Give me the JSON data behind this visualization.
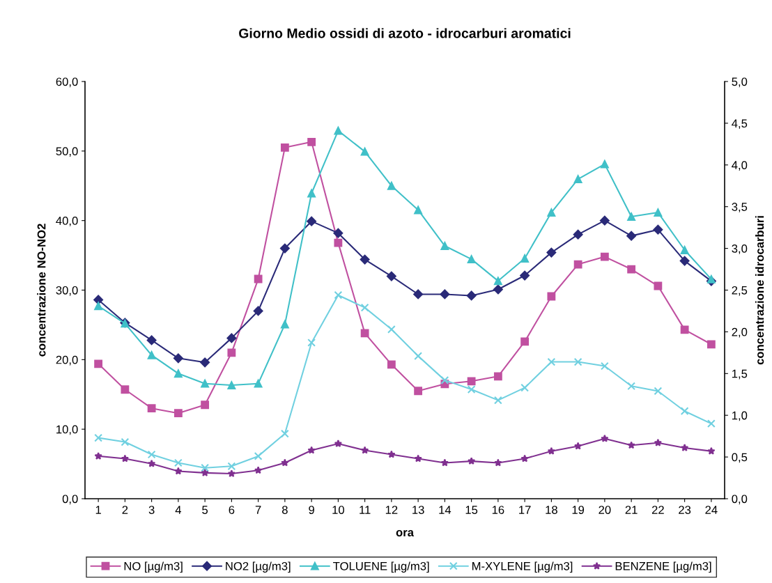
{
  "chart_data": {
    "type": "line",
    "title": "Giorno Medio ossidi di azoto - idrocarburi aromatici",
    "xlabel": "ora",
    "ylabel": "concentrazione NO-NO2",
    "y2label": "concentrazione idrocarburi",
    "categories": [
      "1",
      "2",
      "3",
      "4",
      "5",
      "6",
      "7",
      "8",
      "9",
      "10",
      "11",
      "12",
      "13",
      "14",
      "15",
      "16",
      "17",
      "18",
      "19",
      "20",
      "21",
      "22",
      "23",
      "24"
    ],
    "series": [
      {
        "name": "NO [µg/m3]",
        "color": "#c050a0",
        "marker": "square",
        "values": [
          19.4,
          15.7,
          13.0,
          12.3,
          13.5,
          21.0,
          31.6,
          50.5,
          51.3,
          36.8,
          23.8,
          19.3,
          15.5,
          16.5,
          16.9,
          17.6,
          22.6,
          29.1,
          33.7,
          34.8,
          33.0,
          30.6,
          24.3,
          22.2
        ]
      },
      {
        "name": "NO2 [µg/m3]",
        "color": "#2a2a78",
        "marker": "diamond",
        "values": [
          28.6,
          25.3,
          22.8,
          20.2,
          19.6,
          23.1,
          27.0,
          36.0,
          39.9,
          38.2,
          34.4,
          32.0,
          29.4,
          29.4,
          29.2,
          30.1,
          32.1,
          35.4,
          38.0,
          40.0,
          37.8,
          38.7,
          34.2,
          31.3
        ]
      },
      {
        "name": "TOLUENE [µg/m3]",
        "color": "#40c0c8",
        "marker": "triangle",
        "axis": "y2",
        "values": [
          2.31,
          2.1,
          1.72,
          1.5,
          1.38,
          1.36,
          1.38,
          2.09,
          3.66,
          4.41,
          4.16,
          3.75,
          3.46,
          3.03,
          2.87,
          2.61,
          2.88,
          3.43,
          3.83,
          4.01,
          3.38,
          3.43,
          2.98,
          2.63
        ]
      },
      {
        "name": "M-XYLENE [µg/m3]",
        "color": "#70d0e0",
        "marker": "cross",
        "axis": "y2",
        "values": [
          0.73,
          0.68,
          0.53,
          0.43,
          0.37,
          0.39,
          0.51,
          0.78,
          1.87,
          2.44,
          2.29,
          2.03,
          1.71,
          1.42,
          1.31,
          1.18,
          1.33,
          1.64,
          1.64,
          1.59,
          1.35,
          1.29,
          1.05,
          0.9
        ]
      },
      {
        "name": "BENZENE [µg/m3]",
        "color": "#803090",
        "marker": "star",
        "axis": "y2",
        "values": [
          0.51,
          0.48,
          0.42,
          0.33,
          0.31,
          0.3,
          0.34,
          0.43,
          0.58,
          0.66,
          0.58,
          0.53,
          0.48,
          0.43,
          0.45,
          0.43,
          0.48,
          0.57,
          0.63,
          0.72,
          0.64,
          0.67,
          0.61,
          0.57
        ]
      }
    ],
    "ylim": [
      0,
      60
    ],
    "yticks": [
      {
        "value": 0,
        "label": "0,0"
      },
      {
        "value": 10,
        "label": "10,0"
      },
      {
        "value": 20,
        "label": "20,0"
      },
      {
        "value": 30,
        "label": "30,0"
      },
      {
        "value": 40,
        "label": "40,0"
      },
      {
        "value": 50,
        "label": "50,0"
      },
      {
        "value": 60,
        "label": "60,0"
      }
    ],
    "y2lim": [
      0,
      5
    ],
    "y2ticks": [
      {
        "value": 0,
        "label": "0,0"
      },
      {
        "value": 0.5,
        "label": "0,5"
      },
      {
        "value": 1,
        "label": "1,0"
      },
      {
        "value": 1.5,
        "label": "1,5"
      },
      {
        "value": 2,
        "label": "2,0"
      },
      {
        "value": 2.5,
        "label": "2,5"
      },
      {
        "value": 3,
        "label": "3,0"
      },
      {
        "value": 3.5,
        "label": "3,5"
      },
      {
        "value": 4,
        "label": "4,0"
      },
      {
        "value": 4.5,
        "label": "4,5"
      },
      {
        "value": 5,
        "label": "5,0"
      }
    ],
    "legend": "bottom",
    "grid": false,
    "line_style": "solid"
  }
}
